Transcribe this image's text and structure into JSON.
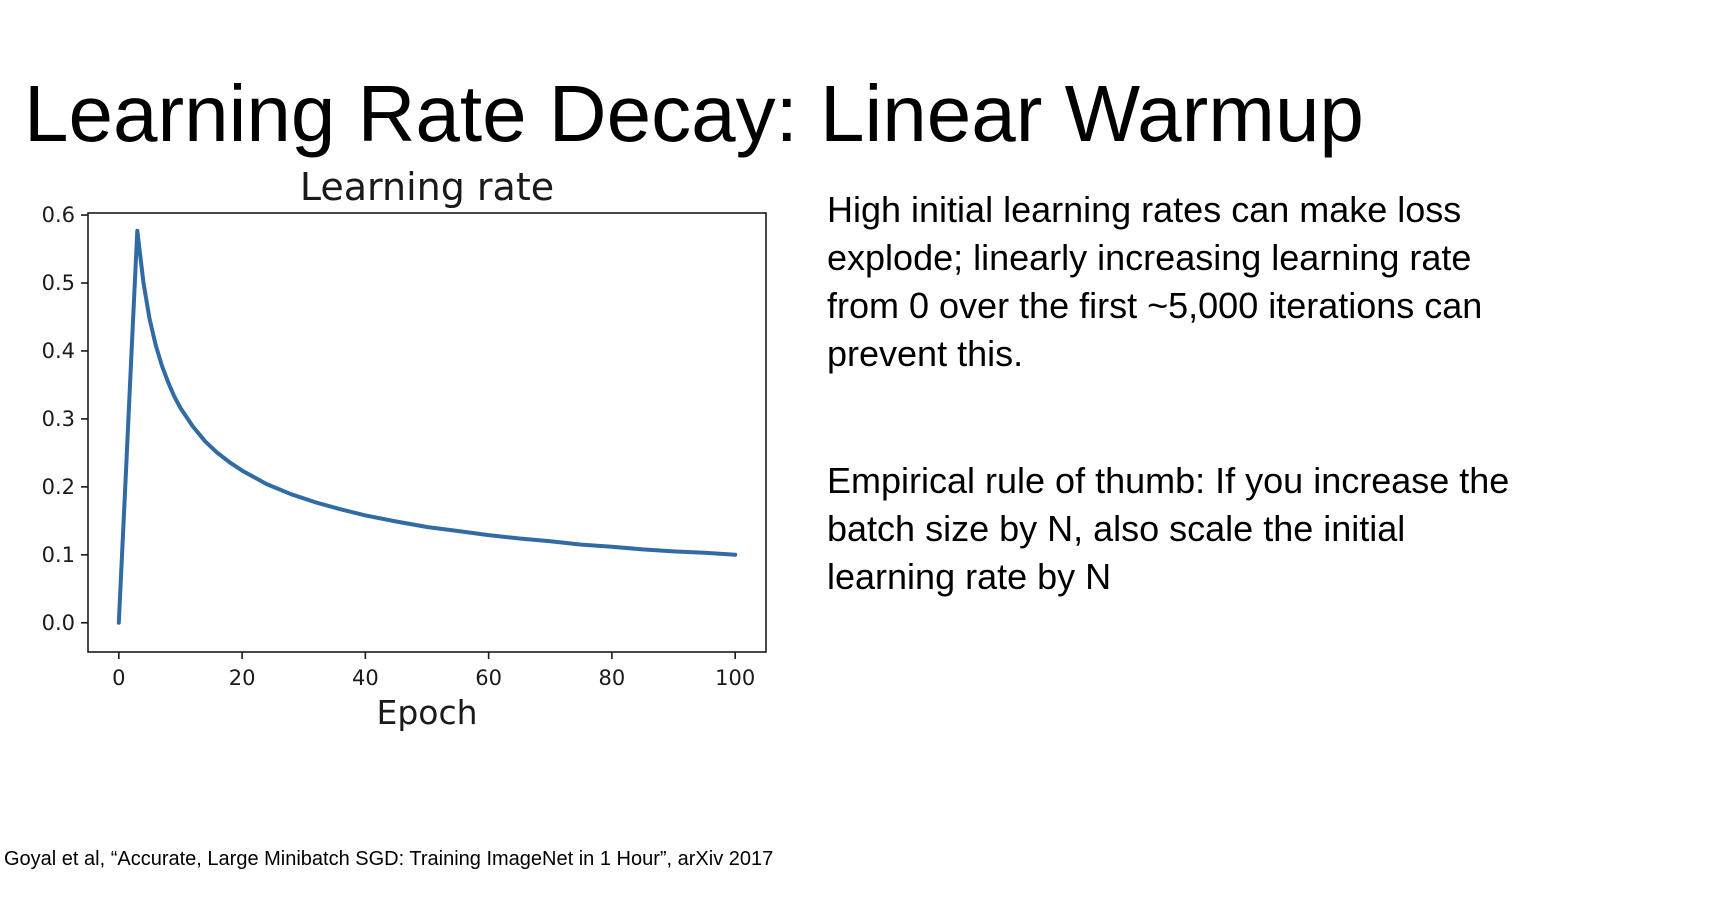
{
  "slide": {
    "title": "Learning Rate Decay: Linear Warmup",
    "body_paragraphs": [
      "High initial learning rates can make loss\nexplode; linearly increasing learning rate\nfrom 0 over the first ~5,000 iterations can\nprevent this.",
      "Empirical rule of thumb: If you increase the\nbatch size by N, also scale the initial\nlearning rate by N"
    ],
    "citation": "Goyal et al, “Accurate, Large Minibatch SGD: Training ImageNet in 1 Hour”, arXiv 2017"
  },
  "chart_data": {
    "type": "line",
    "title": "Learning rate",
    "xlabel": "Epoch",
    "ylabel": "",
    "x_ticks": [
      0,
      20,
      40,
      60,
      80,
      100
    ],
    "y_ticks": [
      "0.0",
      "0.1",
      "0.2",
      "0.3",
      "0.4",
      "0.5",
      "0.6"
    ],
    "xlim": [
      -5,
      105
    ],
    "ylim": [
      -0.043,
      0.603
    ],
    "grid": false,
    "legend": "none",
    "line_color": "#306ba4",
    "axis_color": "#1a1a1a",
    "series": [
      {
        "name": "learning_rate",
        "x": [
          0,
          1,
          2,
          3,
          4,
          5,
          6,
          7,
          8,
          9,
          10,
          12,
          14,
          16,
          18,
          20,
          24,
          28,
          32,
          36,
          40,
          45,
          50,
          55,
          60,
          65,
          70,
          75,
          80,
          85,
          90,
          95,
          100
        ],
        "y": [
          0,
          0.192,
          0.385,
          0.577,
          0.5,
          0.447,
          0.408,
          0.378,
          0.354,
          0.333,
          0.316,
          0.289,
          0.267,
          0.25,
          0.236,
          0.224,
          0.204,
          0.189,
          0.177,
          0.167,
          0.158,
          0.149,
          0.141,
          0.135,
          0.129,
          0.124,
          0.12,
          0.115,
          0.112,
          0.108,
          0.105,
          0.103,
          0.1
        ]
      }
    ]
  }
}
